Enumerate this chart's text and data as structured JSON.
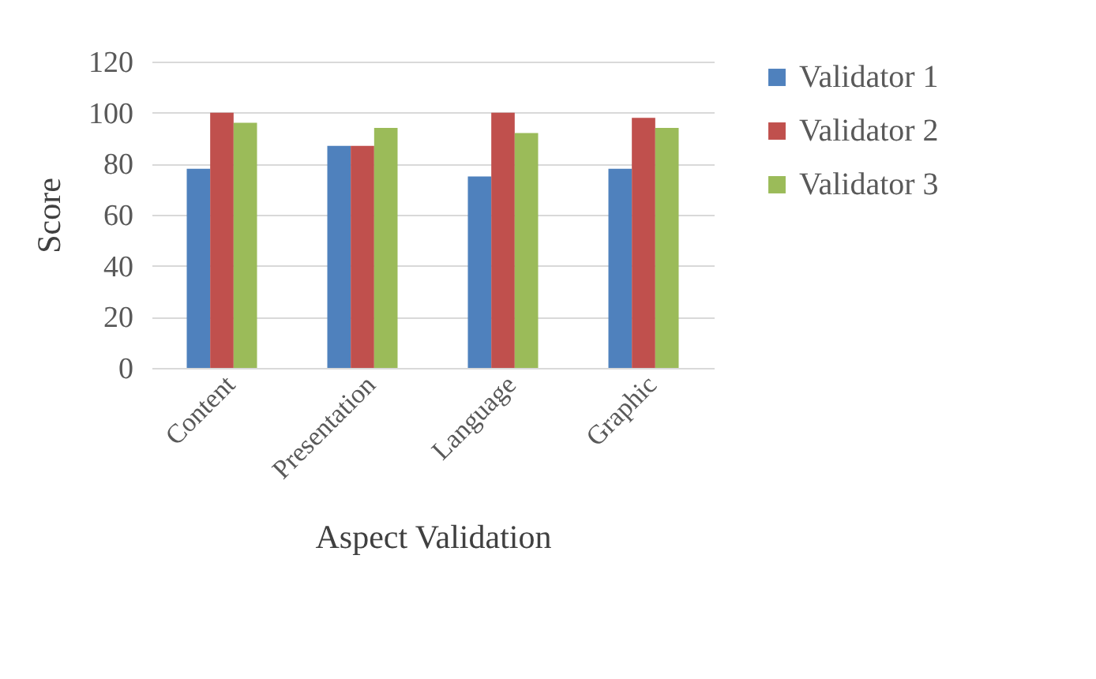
{
  "chart_data": {
    "type": "bar",
    "xlabel": "Aspect Validation",
    "ylabel": "Score",
    "categories": [
      "Content",
      "Presentation",
      "Language",
      "Graphic"
    ],
    "series": [
      {
        "name": "Validator 1",
        "color": "#4f81bd",
        "values": [
          78,
          87,
          75,
          78
        ]
      },
      {
        "name": "Validator 2",
        "color": "#c0504d",
        "values": [
          100,
          87,
          100,
          98
        ]
      },
      {
        "name": "Validator 3",
        "color": "#9bbb59",
        "values": [
          96,
          94,
          92,
          94
        ]
      }
    ],
    "ylim": [
      0,
      120
    ],
    "yticks": [
      0,
      20,
      40,
      60,
      80,
      100,
      120
    ],
    "grid": "y",
    "legend": "right"
  }
}
